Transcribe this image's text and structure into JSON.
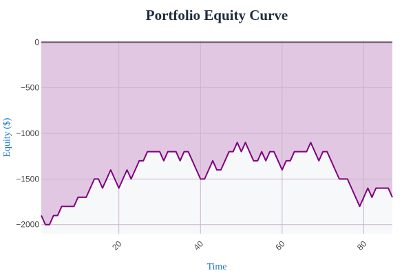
{
  "chart_data": {
    "type": "area",
    "title": "Portfolio Equity Curve",
    "xlabel": "Time",
    "ylabel": "Equity ($)",
    "xlim": [
      1,
      87
    ],
    "ylim": [
      -2100,
      10
    ],
    "x_ticks": [
      20,
      40,
      60,
      80
    ],
    "y_ticks": [
      0,
      -500,
      -1000,
      -1500,
      -2000
    ],
    "y_tick_labels": [
      "0",
      "−500",
      "−1000",
      "−1500",
      "−2000"
    ],
    "grid": true,
    "colors": {
      "line": "#800080",
      "fill_above": "#e1c7e1",
      "fill_below": "#f7f8fa",
      "zero_line": "#6e4e6e"
    },
    "series": [
      {
        "x": [
          1,
          2,
          3,
          4,
          5,
          6,
          7,
          8,
          9,
          10,
          11,
          12,
          13,
          14,
          15,
          16,
          17,
          18,
          19,
          20,
          21,
          22,
          23,
          24,
          25,
          26,
          27,
          28,
          29,
          30,
          31,
          32,
          33,
          34,
          35,
          36,
          37,
          38,
          39,
          40,
          41,
          42,
          43,
          44,
          45,
          46,
          47,
          48,
          49,
          50,
          51,
          52,
          53,
          54,
          55,
          56,
          57,
          58,
          59,
          60,
          61,
          62,
          63,
          64,
          65,
          66,
          67,
          68,
          69,
          70,
          71,
          72,
          73,
          74,
          75,
          76,
          77,
          78,
          79,
          80,
          81,
          82,
          83,
          84,
          85,
          86,
          87
        ],
        "values": [
          -1900,
          -2000,
          -2000,
          -1900,
          -1900,
          -1800,
          -1800,
          -1800,
          -1800,
          -1700,
          -1700,
          -1700,
          -1600,
          -1500,
          -1500,
          -1600,
          -1500,
          -1400,
          -1500,
          -1600,
          -1500,
          -1400,
          -1500,
          -1400,
          -1300,
          -1300,
          -1200,
          -1200,
          -1200,
          -1200,
          -1300,
          -1200,
          -1200,
          -1200,
          -1300,
          -1200,
          -1200,
          -1300,
          -1400,
          -1500,
          -1500,
          -1400,
          -1300,
          -1400,
          -1400,
          -1300,
          -1200,
          -1200,
          -1100,
          -1200,
          -1100,
          -1200,
          -1300,
          -1300,
          -1200,
          -1300,
          -1200,
          -1200,
          -1300,
          -1400,
          -1300,
          -1300,
          -1200,
          -1200,
          -1200,
          -1200,
          -1100,
          -1200,
          -1300,
          -1200,
          -1200,
          -1300,
          -1400,
          -1500,
          -1500,
          -1500,
          -1600,
          -1700,
          -1800,
          -1700,
          -1600,
          -1700,
          -1600,
          -1600,
          -1600,
          -1600,
          -1700
        ]
      }
    ]
  }
}
